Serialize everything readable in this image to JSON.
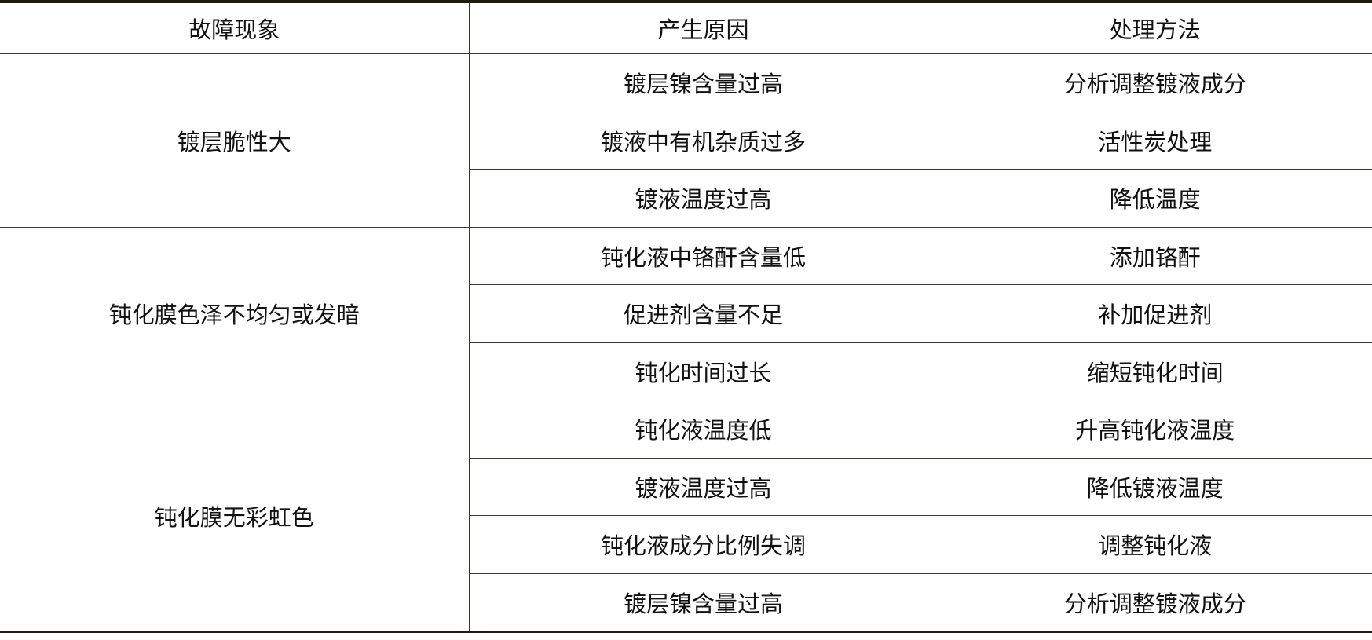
{
  "headers": [
    "故障现象",
    "产生原因",
    "处理方法"
  ],
  "groups": [
    {
      "symptom": "镀层脆性大",
      "rows": [
        {
          "cause": "镀层镍含量过高",
          "remedy": "分析调整镀液成分"
        },
        {
          "cause": "镀液中有机杂质过多",
          "remedy": "活性炭处理"
        },
        {
          "cause": "镀液温度过高",
          "remedy": "降低温度"
        }
      ]
    },
    {
      "symptom": "钝化膜色泽不均匀或发暗",
      "rows": [
        {
          "cause": "钝化液中铬酐含量低",
          "remedy": "添加铬酐"
        },
        {
          "cause": "促进剂含量不足",
          "remedy": "补加促进剂"
        },
        {
          "cause": "钝化时间过长",
          "remedy": "缩短钝化时间"
        }
      ]
    },
    {
      "symptom": "钝化膜无彩虹色",
      "rows": [
        {
          "cause": "钝化液温度低",
          "remedy": "升高钝化液温度"
        },
        {
          "cause": "镀液温度过高",
          "remedy": "降低镀液温度"
        },
        {
          "cause": "钝化液成分比例失调",
          "remedy": "调整钝化液"
        },
        {
          "cause": "镀层镍含量过高",
          "remedy": "分析调整镀液成分"
        }
      ]
    }
  ]
}
